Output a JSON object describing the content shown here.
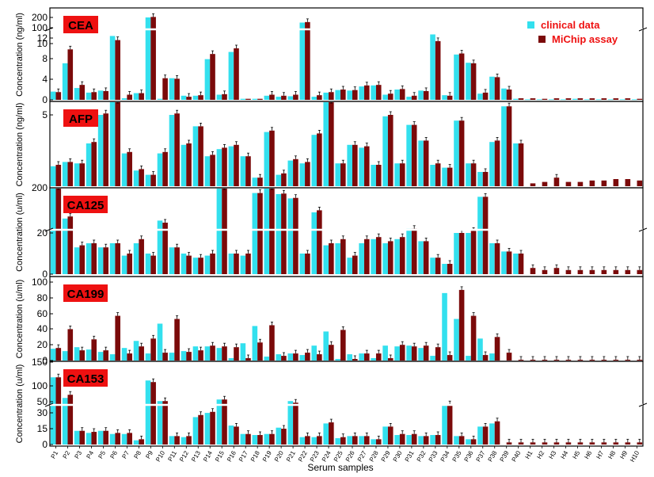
{
  "figure": {
    "xlabel": "Serum samples",
    "legend": [
      {
        "name": "clinical data",
        "color": "#33e0ee",
        "text_color": "#ee1111"
      },
      {
        "name": "MiChip assay",
        "color": "#7b0a0a",
        "text_color": "#ee1111"
      }
    ],
    "title_badge_color": "#ee1111",
    "title_text_color": "#000000"
  },
  "chart_data": [
    {
      "type": "bar",
      "title": "CEA",
      "ylabel": "Concentration (ng/ml)",
      "broken_axis": true,
      "ticks_lower": [
        0,
        4,
        8,
        12
      ],
      "ticks_upper": [
        100,
        200
      ],
      "series": [
        {
          "name": "clinical data",
          "values": [
            1.6,
            7.1,
            2.3,
            1.4,
            1.8,
            12.4,
            0.3,
            1.3,
            200,
            0.2,
            4.2,
            0.8,
            0.8,
            7.9,
            1.0,
            9.3,
            0.2,
            0.2,
            0.8,
            0.6,
            0.7,
            150,
            0.6,
            1.4,
            1.9,
            1.8,
            2.6,
            2.8,
            1.0,
            2.0,
            0.6,
            1.8,
            12.7,
            0.9,
            8.8,
            7.2,
            1.2,
            4.5,
            2.2,
            0.2,
            0.1,
            0.1,
            0.1,
            0.1,
            0.2,
            0.1,
            0.1,
            0.1,
            0.1,
            0.1
          ]
        },
        {
          "name": "MiChip assay",
          "values": [
            1.5,
            9.8,
            2.9,
            1.5,
            1.7,
            11.6,
            1.0,
            1.3,
            205,
            4.2,
            4.1,
            0.6,
            0.9,
            8.9,
            1.1,
            10.0,
            0.2,
            0.2,
            1.0,
            0.8,
            1.0,
            155,
            0.9,
            1.5,
            2.0,
            1.9,
            2.8,
            2.9,
            1.2,
            2.1,
            0.8,
            1.7,
            11.4,
            0.8,
            9.0,
            7.1,
            1.4,
            4.4,
            2.0,
            0.3,
            0.3,
            0.2,
            0.3,
            0.3,
            0.3,
            0.3,
            0.3,
            0.3,
            0.3,
            0.2
          ]
        }
      ]
    },
    {
      "type": "bar",
      "title": "AFP",
      "ylabel": "Concentration (ng/ml)",
      "broken_axis": false,
      "yticks": [
        5,
        10
      ],
      "series": [
        {
          "name": "clinical data",
          "values": [
            1.4,
            1.7,
            1.6,
            3.0,
            5.0,
            6.2,
            2.3,
            1.1,
            0.8,
            2.3,
            5.0,
            2.9,
            4.2,
            2.1,
            2.6,
            2.8,
            2.1,
            0.6,
            3.8,
            0.8,
            1.8,
            1.6,
            3.6,
            7.7,
            1.6,
            2.9,
            2.7,
            1.5,
            4.9,
            1.6,
            4.3,
            3.2,
            1.5,
            1.3,
            4.6,
            1.6,
            1.0,
            3.1,
            5.6,
            3.0
          ]
        },
        {
          "name": "MiChip assay",
          "values": [
            1.5,
            1.7,
            1.6,
            3.1,
            5.1,
            6.3,
            2.4,
            1.2,
            0.8,
            2.4,
            5.1,
            3.0,
            4.2,
            2.2,
            2.7,
            2.9,
            2.1,
            0.6,
            3.9,
            0.9,
            1.9,
            1.7,
            3.7,
            7.6,
            1.6,
            2.9,
            2.8,
            1.5,
            5.0,
            1.6,
            4.3,
            3.2,
            1.6,
            1.3,
            4.6,
            1.6,
            1.0,
            3.2,
            5.6,
            3.0,
            0.2,
            0.3,
            0.6,
            0.3,
            0.3,
            0.4,
            0.4,
            0.5,
            0.5,
            0.4
          ]
        }
      ]
    },
    {
      "type": "bar",
      "title": "CA125",
      "ylabel": "Concentration (u/ml)",
      "broken_axis": true,
      "ticks_lower": [
        0,
        20
      ],
      "ticks_upper": [
        200
      ],
      "series": [
        {
          "name": "clinical data",
          "values": [
            225,
            27,
            13,
            15,
            13,
            15,
            9,
            15,
            10,
            26,
            13,
            10,
            8,
            9,
            300,
            10,
            9,
            150,
            210,
            140,
            100,
            10,
            30,
            14,
            15,
            8,
            15,
            17,
            15,
            17,
            22,
            16,
            8,
            5,
            20,
            20,
            115,
            15,
            11,
            10
          ]
        },
        {
          "name": "MiChip assay",
          "values": [
            240,
            28,
            14,
            15,
            13,
            15,
            10,
            17,
            9,
            25,
            13,
            9,
            8,
            10,
            310,
            10,
            10,
            150,
            215,
            145,
            105,
            10,
            31,
            15,
            17,
            9,
            17,
            18,
            16,
            18,
            22,
            16,
            8,
            5,
            20,
            21,
            115,
            15,
            11,
            10,
            3,
            2,
            3,
            2,
            2,
            2,
            2,
            2,
            2,
            2
          ]
        }
      ]
    },
    {
      "type": "bar",
      "title": "CA199",
      "ylabel": "Concentration (u/ml)",
      "broken_axis": false,
      "yticks": [
        0,
        20,
        40,
        60,
        80,
        100
      ],
      "series": [
        {
          "name": "clinical data",
          "values": [
            15,
            12,
            17,
            14,
            11,
            8,
            16,
            25,
            9,
            47,
            10,
            12,
            18,
            18,
            16,
            3,
            22,
            44,
            5,
            8,
            9,
            7,
            19,
            37,
            2,
            8,
            9,
            3,
            19,
            18,
            19,
            16,
            6,
            86,
            53,
            6,
            28,
            9
          ]
        },
        {
          "name": "MiChip assay",
          "values": [
            16,
            40,
            13,
            27,
            13,
            57,
            9,
            18,
            28,
            10,
            53,
            11,
            13,
            19,
            18,
            17,
            3,
            23,
            45,
            6,
            9,
            10,
            8,
            20,
            39,
            2,
            9,
            9,
            3,
            20,
            18,
            19,
            17,
            7,
            90,
            57,
            7,
            30,
            10,
            1,
            1,
            1,
            1,
            1,
            1,
            1,
            1,
            1,
            1,
            1
          ]
        }
      ]
    },
    {
      "type": "bar",
      "title": "CA153",
      "ylabel": "Concentration (u/ml)",
      "broken_axis": true,
      "ticks_lower": [
        0,
        15,
        30
      ],
      "ticks_upper": [
        50,
        100,
        150
      ],
      "series": [
        {
          "name": "clinical data",
          "values": [
            125,
            60,
            13,
            11,
            13,
            10,
            10,
            4,
            115,
            50,
            8,
            7,
            26,
            30,
            55,
            18,
            10,
            9,
            10,
            16,
            50,
            7,
            7,
            20,
            6,
            8,
            8,
            5,
            17,
            9,
            9,
            8,
            9,
            40,
            8,
            5,
            17,
            20
          ]
        },
        {
          "name": "MiChip assay",
          "values": [
            125,
            70,
            13,
            12,
            13,
            11,
            11,
            5,
            110,
            50,
            8,
            8,
            28,
            31,
            55,
            17,
            10,
            9,
            10,
            15,
            45,
            8,
            8,
            21,
            7,
            8,
            8,
            5,
            17,
            10,
            10,
            8,
            9,
            40,
            8,
            5,
            17,
            22,
            2,
            2,
            2,
            2,
            2,
            2,
            2,
            2,
            2,
            2,
            2,
            2
          ]
        }
      ]
    }
  ],
  "sample_labels": [
    "P1",
    "P2",
    "P3",
    "P4",
    "P5",
    "P6",
    "P7",
    "P8",
    "P9",
    "P10",
    "P11",
    "P12",
    "P13",
    "P14",
    "P15",
    "P16",
    "P17",
    "P18",
    "P19",
    "P20",
    "P21",
    "P22",
    "P23",
    "P24",
    "P25",
    "P26",
    "P27",
    "P28",
    "P29",
    "P30",
    "P31",
    "P32",
    "P33",
    "P34",
    "P35",
    "P36",
    "P37",
    "P38",
    "P39",
    "P40",
    "H1",
    "H2",
    "H3",
    "H4",
    "H5",
    "H6",
    "H7",
    "H8",
    "H9",
    "H10"
  ]
}
